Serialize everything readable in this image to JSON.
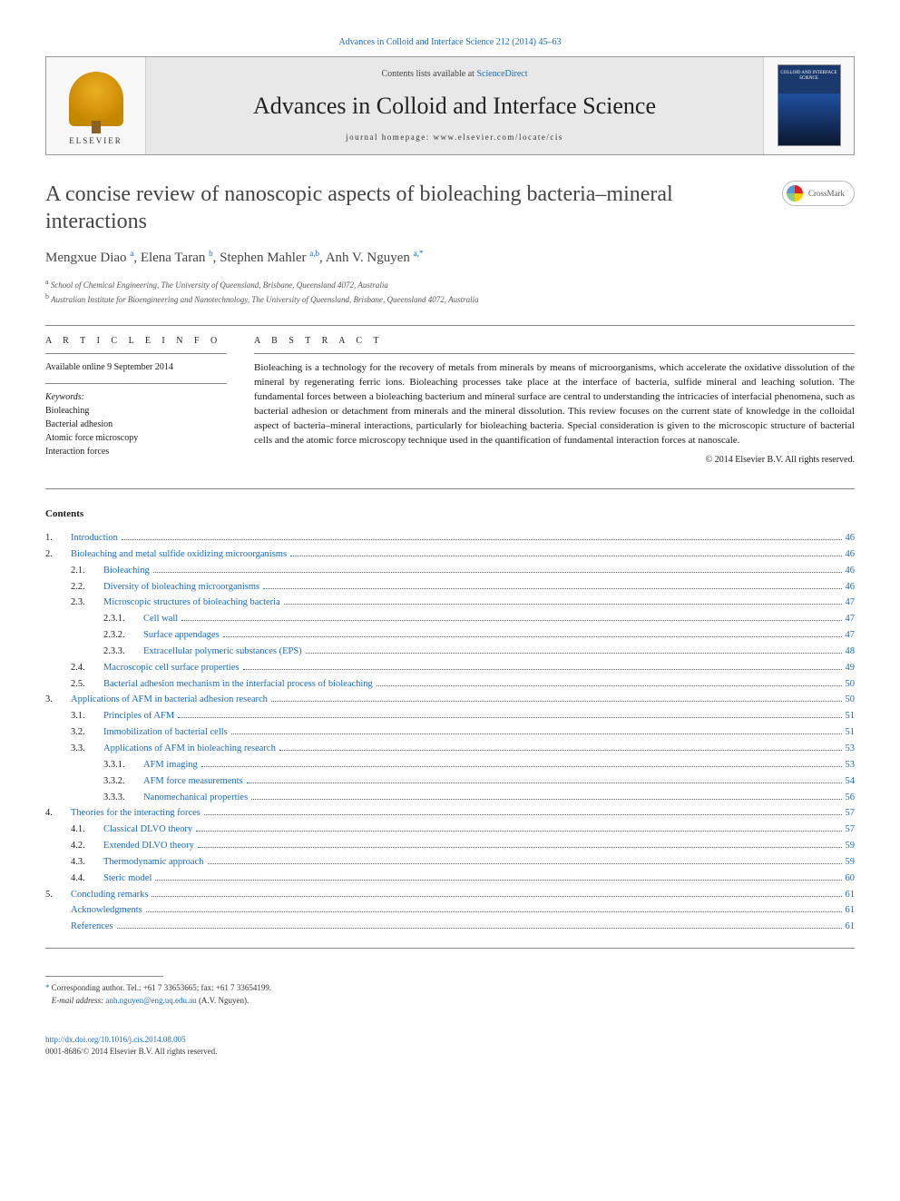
{
  "colors": {
    "link": "#1a6bb5",
    "text": "#1a1a1a",
    "muted": "#444444",
    "rule": "#888888"
  },
  "header": {
    "journal_ref_link": "Advances in Colloid and Interface Science 212 (2014) 45–63",
    "contents_prefix": "Contents lists available at ",
    "contents_link": "ScienceDirect",
    "journal_title": "Advances in Colloid and Interface Science",
    "homepage_line": "journal homepage: www.elsevier.com/locate/cis",
    "publisher_logo": "ELSEVIER",
    "cover_text": "COLLOID AND INTERFACE SCIENCE"
  },
  "article": {
    "title": "A concise review of nanoscopic aspects of bioleaching bacteria–mineral interactions",
    "crossmark_label": "CrossMark",
    "authors": [
      {
        "name": "Mengxue Diao",
        "aff": "a"
      },
      {
        "name": "Elena Taran",
        "aff": "b"
      },
      {
        "name": "Stephen Mahler",
        "aff": "a,b"
      },
      {
        "name": "Anh V. Nguyen",
        "aff": "a,*"
      }
    ],
    "affiliations": [
      {
        "key": "a",
        "text": "School of Chemical Engineering, The University of Queensland, Brisbane, Queensland 4072, Australia"
      },
      {
        "key": "b",
        "text": "Australian Institute for Bioengineering and Nanotechnology, The University of Queensland, Brisbane, Queensland 4072, Australia"
      }
    ]
  },
  "info": {
    "heading": "A R T I C L E   I N F O",
    "available": "Available online 9 September 2014",
    "keywords_label": "Keywords:",
    "keywords": [
      "Bioleaching",
      "Bacterial adhesion",
      "Atomic force microscopy",
      "Interaction forces"
    ]
  },
  "abstract": {
    "heading": "A B S T R A C T",
    "text": "Bioleaching is a technology for the recovery of metals from minerals by means of microorganisms, which accelerate the oxidative dissolution of the mineral by regenerating ferric ions. Bioleaching processes take place at the interface of bacteria, sulfide mineral and leaching solution. The fundamental forces between a bioleaching bacterium and mineral surface are central to understanding the intricacies of interfacial phenomena, such as bacterial adhesion or detachment from minerals and the mineral dissolution. This review focuses on the current state of knowledge in the colloidal aspect of bacteria–mineral interactions, particularly for bioleaching bacteria. Special consideration is given to the microscopic structure of bacterial cells and the atomic force microscopy technique used in the quantification of fundamental interaction forces at nanoscale.",
    "copyright": "© 2014 Elsevier B.V. All rights reserved."
  },
  "contents": {
    "heading": "Contents",
    "items": [
      {
        "num": "1.",
        "level": 0,
        "title": "Introduction",
        "page": "46"
      },
      {
        "num": "2.",
        "level": 0,
        "title": "Bioleaching and metal sulfide oxidizing microorganisms",
        "page": "46"
      },
      {
        "num": "2.1.",
        "level": 1,
        "title": "Bioleaching",
        "page": "46"
      },
      {
        "num": "2.2.",
        "level": 1,
        "title": "Diversity of bioleaching microorganisms",
        "page": "46"
      },
      {
        "num": "2.3.",
        "level": 1,
        "title": "Microscopic structures of bioleaching bacteria",
        "page": "47"
      },
      {
        "num": "2.3.1.",
        "level": 2,
        "title": "Cell wall",
        "page": "47"
      },
      {
        "num": "2.3.2.",
        "level": 2,
        "title": "Surface appendages",
        "page": "47"
      },
      {
        "num": "2.3.3.",
        "level": 2,
        "title": "Extracellular polymeric substances (EPS)",
        "page": "48"
      },
      {
        "num": "2.4.",
        "level": 1,
        "title": "Macroscopic cell surface properties",
        "page": "49"
      },
      {
        "num": "2.5.",
        "level": 1,
        "title": "Bacterial adhesion mechanism in the interfacial process of bioleaching",
        "page": "50"
      },
      {
        "num": "3.",
        "level": 0,
        "title": "Applications of AFM in bacterial adhesion research",
        "page": "50"
      },
      {
        "num": "3.1.",
        "level": 1,
        "title": "Principles of AFM",
        "page": "51"
      },
      {
        "num": "3.2.",
        "level": 1,
        "title": "Immobilization of bacterial cells",
        "page": "51"
      },
      {
        "num": "3.3.",
        "level": 1,
        "title": "Applications of AFM in bioleaching research",
        "page": "53"
      },
      {
        "num": "3.3.1.",
        "level": 2,
        "title": "AFM imaging",
        "page": "53"
      },
      {
        "num": "3.3.2.",
        "level": 2,
        "title": "AFM force measurements",
        "page": "54"
      },
      {
        "num": "3.3.3.",
        "level": 2,
        "title": "Nanomechanical properties",
        "page": "56"
      },
      {
        "num": "4.",
        "level": 0,
        "title": "Theories for the interacting forces",
        "page": "57"
      },
      {
        "num": "4.1.",
        "level": 1,
        "title": "Classical DLVO theory",
        "page": "57"
      },
      {
        "num": "4.2.",
        "level": 1,
        "title": "Extended DLVO theory",
        "page": "59"
      },
      {
        "num": "4.3.",
        "level": 1,
        "title": "Thermodynamic approach",
        "page": "59"
      },
      {
        "num": "4.4.",
        "level": 1,
        "title": "Steric model",
        "page": "60"
      },
      {
        "num": "5.",
        "level": 0,
        "title": "Concluding remarks",
        "page": "61"
      },
      {
        "num": "",
        "level": 0,
        "title": "Acknowledgments",
        "page": "61"
      },
      {
        "num": "",
        "level": 0,
        "title": "References",
        "page": "61"
      }
    ]
  },
  "footnote": {
    "corr": "Corresponding author. Tel.: +61 7 33653665; fax: +61 7 33654199.",
    "email_label": "E-mail address:",
    "email": "anh.nguyen@eng.uq.edu.au",
    "email_author": "(A.V. Nguyen)."
  },
  "footer": {
    "doi": "http://dx.doi.org/10.1016/j.cis.2014.08.005",
    "issn_line": "0001-8686/© 2014 Elsevier B.V. All rights reserved."
  }
}
